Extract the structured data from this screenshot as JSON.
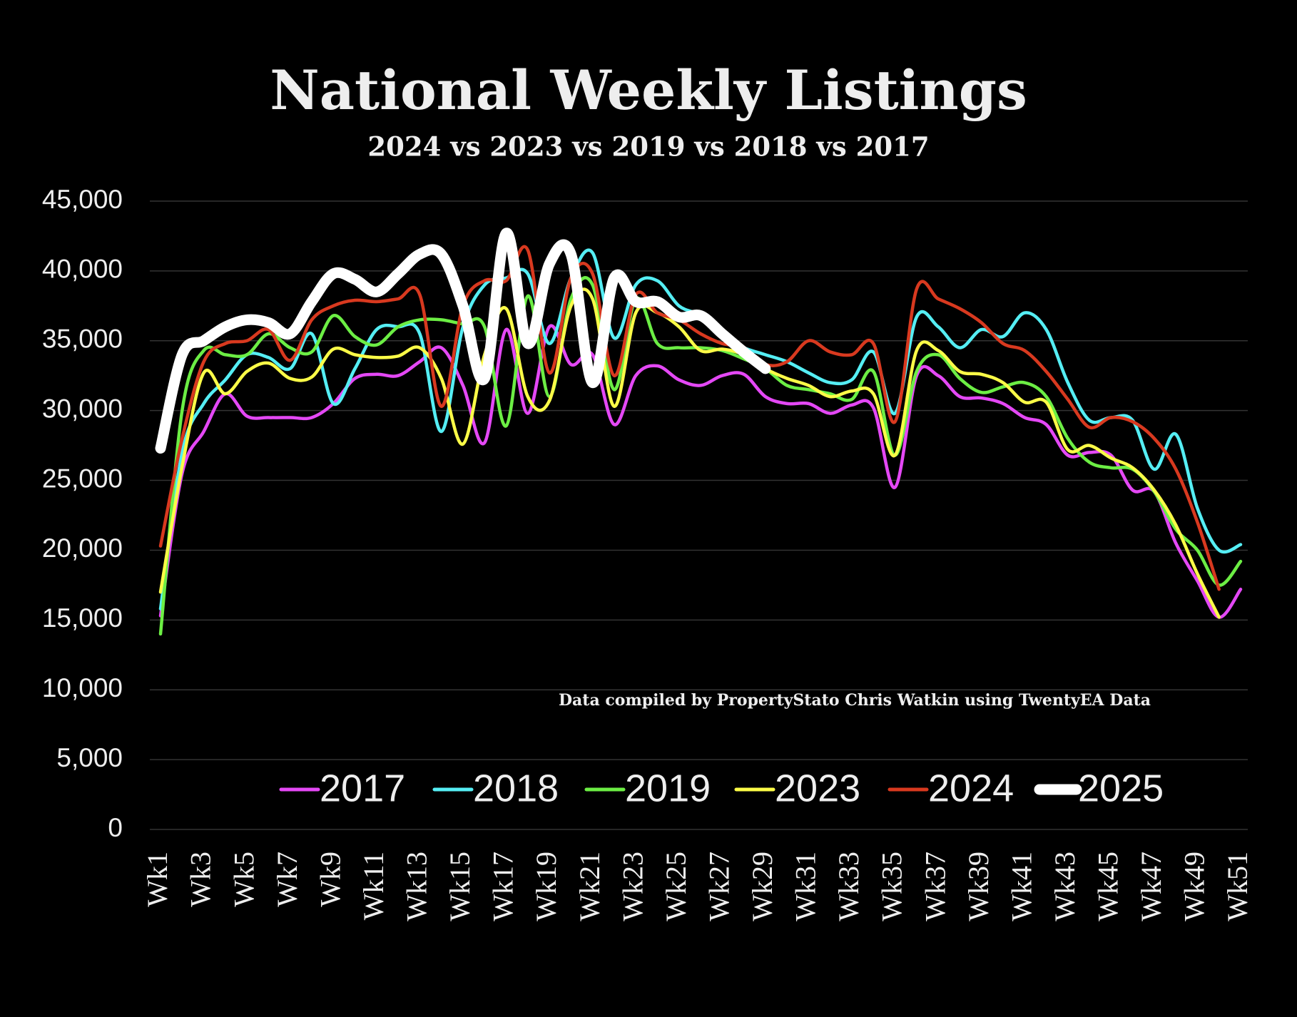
{
  "chart_data": {
    "type": "line",
    "title": "National Weekly Listings",
    "subtitle": "2024 vs 2023 vs 2019 vs 2018 vs 2017",
    "annotation": "Data compiled by PropertyStato Chris Watkin using TwentyEA Data",
    "categories": [
      "Wk1",
      null,
      "Wk3",
      null,
      "Wk5",
      null,
      "Wk7",
      null,
      "Wk9",
      null,
      "Wk11",
      null,
      "Wk13",
      null,
      "Wk15",
      null,
      "Wk17",
      null,
      "Wk19",
      null,
      "Wk21",
      null,
      "Wk23",
      null,
      "Wk25",
      null,
      "Wk27",
      null,
      "Wk29",
      null,
      "Wk31",
      null,
      "Wk33",
      null,
      "Wk35",
      null,
      "Wk37",
      null,
      "Wk39",
      null,
      "Wk41",
      null,
      "Wk43",
      null,
      "Wk45",
      null,
      "Wk47",
      null,
      "Wk49",
      null,
      "Wk51"
    ],
    "ylim": [
      0,
      45000
    ],
    "yticks": [
      0,
      {
        "value": 5000,
        "label": "5,000"
      },
      {
        "value": 10000,
        "label": "10,000"
      },
      {
        "value": 15000,
        "label": "15,000"
      },
      {
        "value": 20000,
        "label": "20,000"
      },
      {
        "value": 25000,
        "label": "25,000"
      },
      {
        "value": 30000,
        "label": "30,000"
      },
      {
        "value": 35000,
        "label": "35,000"
      },
      {
        "value": 40000,
        "label": "40,000"
      },
      {
        "value": 45000,
        "label": "45,000"
      }
    ],
    "grid": true,
    "legend": "bottom",
    "smooth": true,
    "series": [
      {
        "name": "2017",
        "color": "#e448f5",
        "values": [
          15300,
          25500,
          28500,
          31200,
          29600,
          29500,
          29500,
          29500,
          30500,
          32300,
          32600,
          32500,
          33500,
          34500,
          31800,
          27700,
          35800,
          29800,
          36000,
          33300,
          34000,
          29000,
          32500,
          33200,
          32200,
          31800,
          32500,
          32600,
          31000,
          30500,
          30500,
          29800,
          30400,
          30200,
          24500,
          32500,
          32500,
          31000,
          30900,
          30500,
          29500,
          29000,
          26800,
          27000,
          26800,
          24300,
          24200,
          20500,
          17800,
          15200,
          17200
        ]
      },
      {
        "name": "2018",
        "color": "#55eef4",
        "values": [
          15800,
          27000,
          30500,
          32200,
          34000,
          33800,
          33000,
          35500,
          30500,
          33000,
          35800,
          36000,
          35500,
          28500,
          36000,
          39000,
          39500,
          39800,
          34800,
          39500,
          41300,
          35200,
          39000,
          39300,
          37500,
          36800,
          35300,
          34500,
          34000,
          33500,
          32700,
          32000,
          32200,
          34200,
          29800,
          36700,
          36000,
          34500,
          35800,
          35300,
          37000,
          35800,
          32000,
          29300,
          29500,
          29300,
          25800,
          28300,
          23000,
          20000,
          20400
        ]
      },
      {
        "name": "2019",
        "color": "#6cee44",
        "values": [
          14000,
          30000,
          34300,
          34000,
          34000,
          35500,
          34500,
          34200,
          36800,
          35300,
          34700,
          36000,
          36500,
          36500,
          36200,
          36000,
          28900,
          38200,
          31000,
          38000,
          39000,
          31500,
          38000,
          34800,
          34500,
          34500,
          34300,
          33700,
          33000,
          31800,
          31500,
          31200,
          30800,
          32800,
          26800,
          32800,
          34000,
          32300,
          31300,
          31700,
          32000,
          31000,
          28000,
          26300,
          25900,
          25800,
          24200,
          21500,
          20000,
          17500,
          19200
        ]
      },
      {
        "name": "2023",
        "color": "#fbfb47",
        "values": [
          17000,
          26000,
          32700,
          31200,
          32800,
          33400,
          32300,
          32400,
          34400,
          34000,
          33800,
          33900,
          34500,
          32300,
          27600,
          34000,
          37300,
          31000,
          30700,
          37500,
          38000,
          30300,
          37000,
          37000,
          36000,
          34300,
          34400,
          34000,
          33000,
          32300,
          31800,
          31000,
          31400,
          31200,
          26800,
          34300,
          34300,
          32800,
          32600,
          32000,
          30600,
          30600,
          27200,
          27500,
          26600,
          25900,
          24300,
          21800,
          18300,
          15200,
          null
        ]
      },
      {
        "name": "2024",
        "color": "#d8391f",
        "values": [
          20300,
          28000,
          33500,
          34800,
          35000,
          35800,
          33600,
          36500,
          37500,
          37900,
          37800,
          38000,
          38300,
          30300,
          37500,
          39300,
          39300,
          41500,
          32700,
          39500,
          39800,
          32500,
          38300,
          37000,
          36500,
          35500,
          34800,
          34500,
          33300,
          33500,
          35000,
          34200,
          34000,
          34800,
          29200,
          38700,
          38000,
          37300,
          36300,
          34800,
          34300,
          32800,
          30800,
          28800,
          29500,
          29200,
          28000,
          25800,
          22000,
          17200,
          null
        ]
      },
      {
        "name": "2025",
        "color": "#ffffff",
        "values": [
          27300,
          34000,
          35000,
          36000,
          36500,
          36300,
          35500,
          37800,
          39800,
          39400,
          38500,
          39800,
          41200,
          41200,
          37500,
          32300,
          42700,
          34800,
          40500,
          41200,
          32000,
          39500,
          37800,
          37800,
          36700,
          36800,
          35500,
          34200,
          33000,
          null,
          null,
          null,
          null,
          null,
          null,
          null,
          null,
          null,
          null,
          null,
          null,
          null,
          null,
          null,
          null,
          null,
          null,
          null,
          null,
          null,
          null
        ]
      }
    ]
  }
}
